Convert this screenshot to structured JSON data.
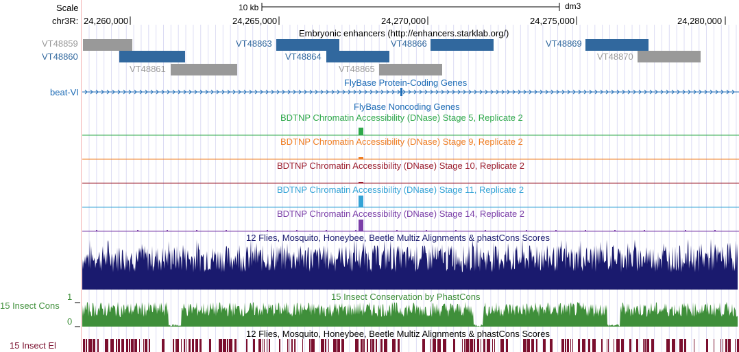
{
  "ruler": {
    "scale_label": "Scale",
    "scale_value": "10 kb",
    "assembly": "dm3",
    "chrom_label": "chr3R:",
    "positions": [
      "24,260,000",
      "24,265,000",
      "24,270,000",
      "24,275,000",
      "24,280,000"
    ]
  },
  "tracks": {
    "enhancers": {
      "title": "Embryonic enhancers (http://enhancers.starklab.org/)",
      "items": [
        {
          "name": "VT48859",
          "color": "#999999"
        },
        {
          "name": "VT48860",
          "color": "#31689e"
        },
        {
          "name": "VT48861",
          "color": "#999999"
        },
        {
          "name": "VT48863",
          "color": "#31689e"
        },
        {
          "name": "VT48864",
          "color": "#31689e"
        },
        {
          "name": "VT48865",
          "color": "#999999"
        },
        {
          "name": "VT48866",
          "color": "#31689e"
        },
        {
          "name": "VT48869",
          "color": "#31689e"
        },
        {
          "name": "VT48870",
          "color": "#999999"
        }
      ]
    },
    "protein_coding": {
      "title": "FlyBase Protein-Coding Genes",
      "gene": "beat-VI",
      "color": "#1b6ab5"
    },
    "noncoding": {
      "title": "FlyBase Noncoding Genes",
      "color": "#1b6ab5"
    },
    "dnase": [
      {
        "title": "BDTNP Chromatin Accessibility (DNase) Stage 5, Replicate 2",
        "color": "#2ea84a"
      },
      {
        "title": "BDTNP Chromatin Accessibility (DNase) Stage 9, Replicate 2",
        "color": "#ef7d22"
      },
      {
        "title": "BDTNP Chromatin Accessibility (DNase) Stage 10, Replicate 2",
        "color": "#9b1c2c"
      },
      {
        "title": "BDTNP Chromatin Accessibility (DNase) Stage 11, Replicate 2",
        "color": "#34a3d6"
      },
      {
        "title": "BDTNP Chromatin Accessibility (DNase) Stage 14, Replicate 2",
        "color": "#7b3fa8"
      }
    ],
    "multiz": {
      "title": "12 Flies, Mosquito, Honeybee, Beetle Multiz Alignments & phastCons Scores",
      "color": "#1a1a6e"
    },
    "insect_cons": {
      "title": "15 Insect Conservation by PhastCons",
      "label": "15 Insect Cons",
      "max_label": "1",
      "min_label": "0",
      "color": "#3f8f3a"
    },
    "insect_el": {
      "title": "12 Flies, Mosquito, Honeybee, Beetle Multiz Alignments & phastCons Scores",
      "label": "15 Insect El",
      "color": "#7a0f2e"
    }
  }
}
